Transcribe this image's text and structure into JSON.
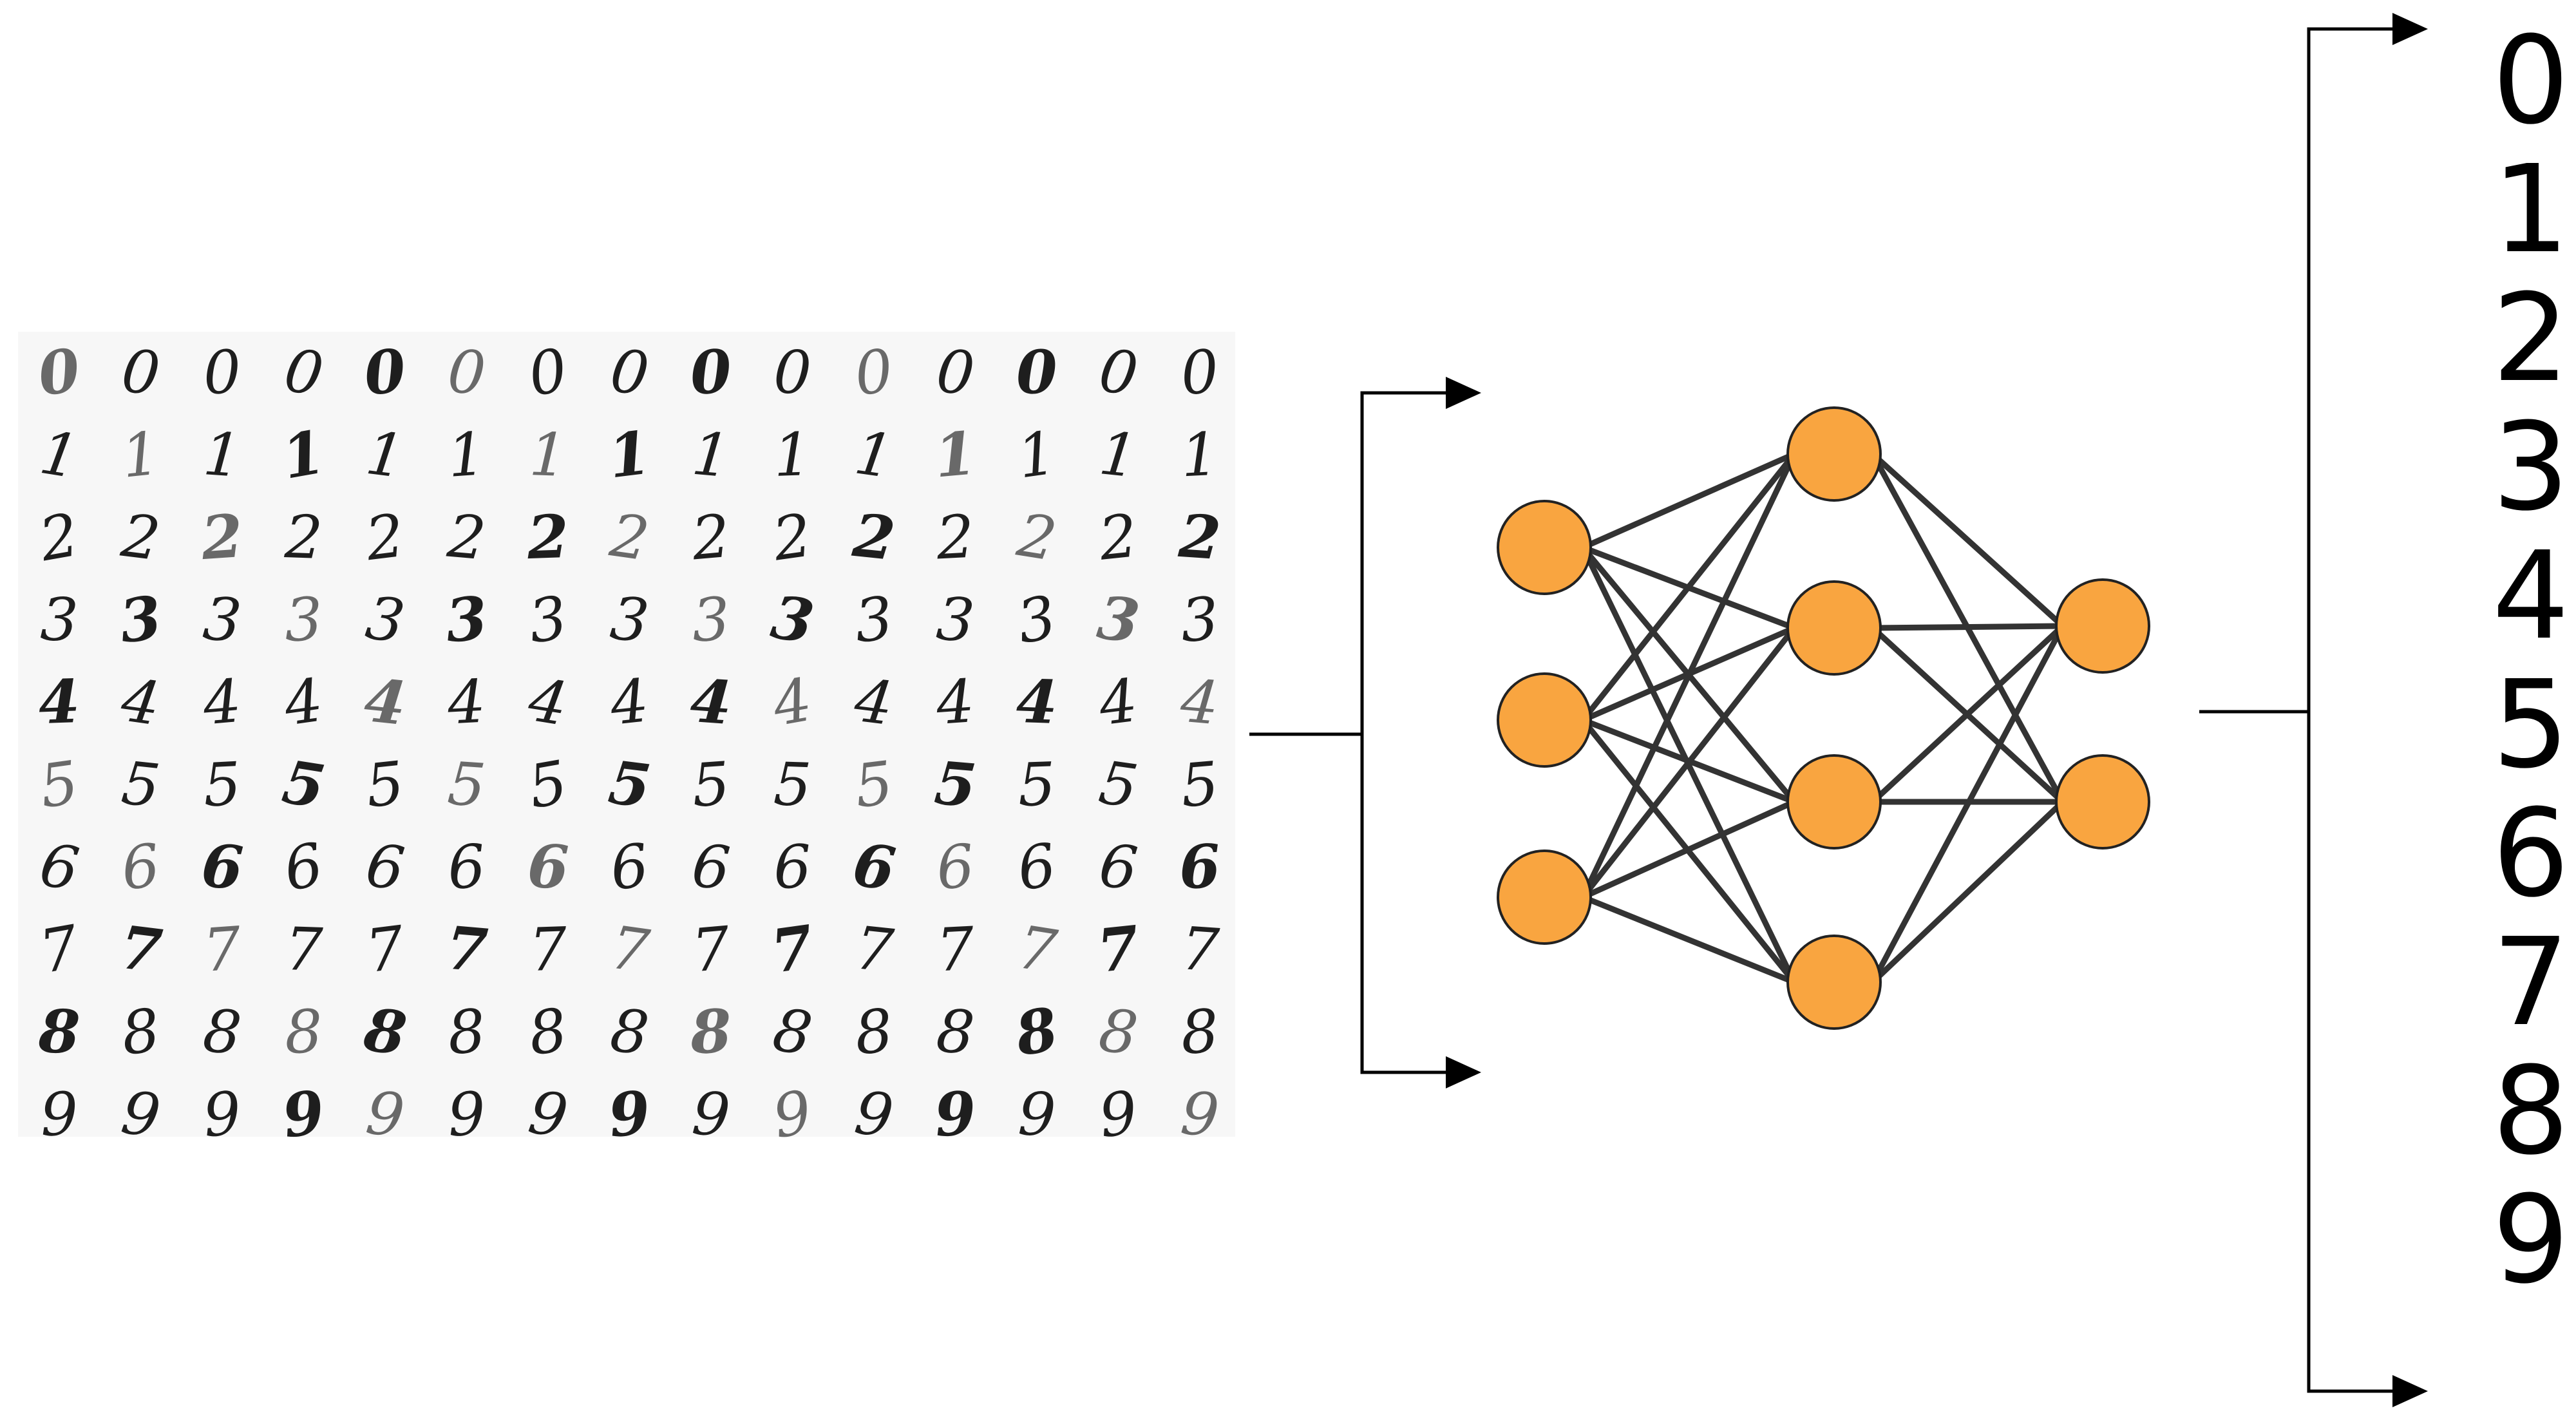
{
  "digit_grid": {
    "rows": [
      [
        "0",
        "0",
        "0",
        "0",
        "0",
        "0",
        "0",
        "0",
        "0",
        "0",
        "0",
        "0",
        "0",
        "0",
        "0"
      ],
      [
        "1",
        "1",
        "1",
        "1",
        "1",
        "1",
        "1",
        "1",
        "1",
        "1",
        "1",
        "1",
        "1",
        "1",
        "1"
      ],
      [
        "2",
        "2",
        "2",
        "2",
        "2",
        "2",
        "2",
        "2",
        "2",
        "2",
        "2",
        "2",
        "2",
        "2",
        "2"
      ],
      [
        "3",
        "3",
        "3",
        "3",
        "3",
        "3",
        "3",
        "3",
        "3",
        "3",
        "3",
        "3",
        "3",
        "3",
        "3"
      ],
      [
        "4",
        "4",
        "4",
        "4",
        "4",
        "4",
        "4",
        "4",
        "4",
        "4",
        "4",
        "4",
        "4",
        "4",
        "4"
      ],
      [
        "5",
        "5",
        "5",
        "5",
        "5",
        "5",
        "5",
        "5",
        "5",
        "5",
        "5",
        "5",
        "5",
        "5",
        "5"
      ],
      [
        "6",
        "6",
        "6",
        "6",
        "6",
        "6",
        "6",
        "6",
        "6",
        "6",
        "6",
        "6",
        "6",
        "6",
        "6"
      ],
      [
        "7",
        "7",
        "7",
        "7",
        "7",
        "7",
        "7",
        "7",
        "7",
        "7",
        "7",
        "7",
        "7",
        "7",
        "7"
      ],
      [
        "8",
        "8",
        "8",
        "8",
        "8",
        "8",
        "8",
        "8",
        "8",
        "8",
        "8",
        "8",
        "8",
        "8",
        "8"
      ],
      [
        "9",
        "9",
        "9",
        "9",
        "9",
        "9",
        "9",
        "9",
        "9",
        "9",
        "9",
        "9",
        "9",
        "9",
        "9"
      ]
    ]
  },
  "network": {
    "layers": [
      3,
      4,
      2
    ],
    "neuron_color": "#F9A540",
    "edge_color": "#333333"
  },
  "output_labels": [
    "0",
    "1",
    "2",
    "3",
    "4",
    "5",
    "6",
    "7",
    "8",
    "9"
  ]
}
